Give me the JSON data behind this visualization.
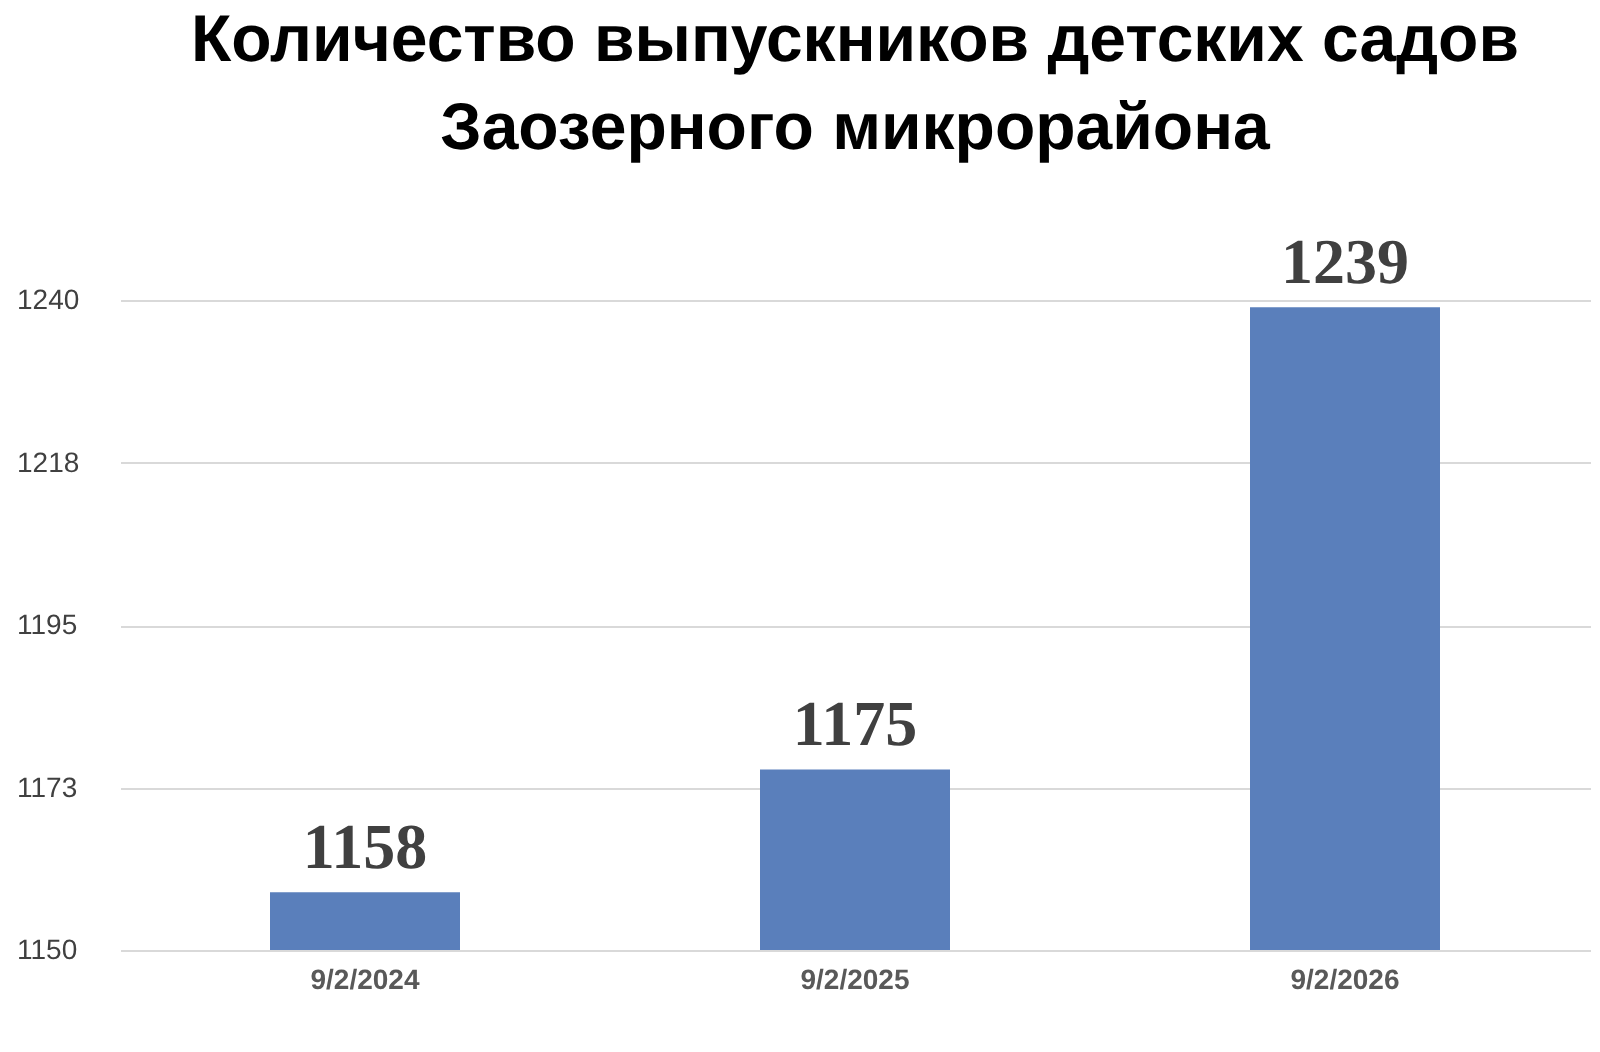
{
  "chart_data": {
    "type": "bar",
    "title": "Количество выпускников детских садов\nЗаозерного микрорайона",
    "categories": [
      "9/2/2024",
      "9/2/2025",
      "9/2/2026"
    ],
    "values": [
      1158,
      1175,
      1239
    ],
    "color": "#5a7fbb",
    "ylim": [
      1150,
      1240
    ],
    "yticks": [
      1150,
      {
        "value": 1172.5,
        "label": "1173"
      },
      1195,
      {
        "value": 1217.5,
        "label": "1218"
      },
      1240
    ],
    "grid": "y",
    "data_labels": true
  }
}
